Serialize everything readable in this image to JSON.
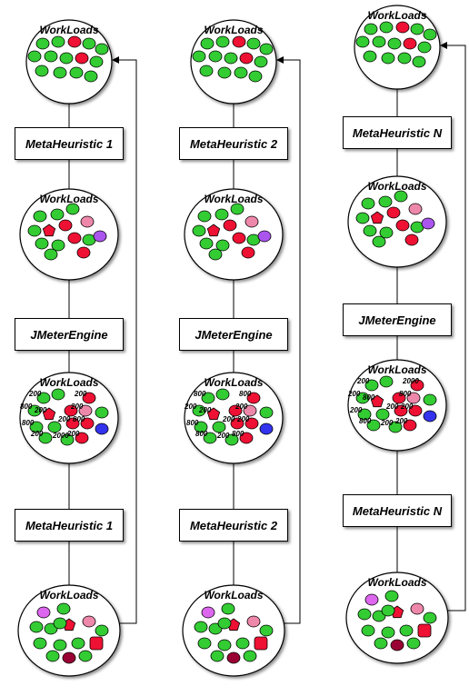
{
  "workload_label": "WorkLoads",
  "engine_label": "JMeterEngine",
  "columns": [
    {
      "meta_label": "MetaHeuristic 1"
    },
    {
      "meta_label": "MetaHeuristic 2"
    },
    {
      "meta_label": "MetaHeuristic N"
    }
  ],
  "colors": {
    "green": "#33cc33",
    "red": "#ee1133",
    "pink": "#ee88aa",
    "purple": "#aa55ee",
    "blue": "#3333ee",
    "violet": "#dd66ee",
    "darkred": "#990033"
  },
  "stage3_numbers": [
    "200",
    "200",
    "800",
    "200",
    "200",
    "800",
    "200",
    "800",
    "200",
    "2000",
    "200",
    "800",
    "800",
    "200"
  ]
}
